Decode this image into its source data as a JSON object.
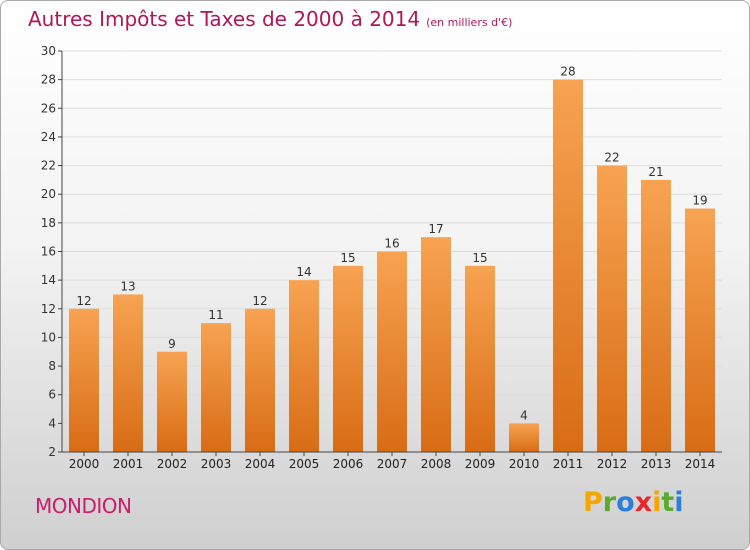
{
  "header": {
    "title": "Autres Impôts et Taxes de 2000 à 2014",
    "unit": "(en milliers d'€)"
  },
  "footer": {
    "commune": "MONDION"
  },
  "logo": {
    "letters": [
      "P",
      "r",
      "o",
      "x",
      "i",
      "t",
      "i"
    ],
    "colors": [
      "#f7a500",
      "#5aab2c",
      "#2b7fd8",
      "#e8262b",
      "#f7a500",
      "#5aab2c",
      "#2b7fd8"
    ]
  },
  "colors": {
    "bar_top": "#f7a352",
    "bar_bottom": "#d86c14",
    "axis": "#444444",
    "grid": "#dddddd",
    "title": "#b0175a"
  },
  "chart_data": {
    "type": "bar",
    "title": "Autres Impôts et Taxes de 2000 à 2014",
    "subtitle": "(en milliers d'€)",
    "xlabel": "",
    "ylabel": "",
    "ylim": [
      2,
      30
    ],
    "yticks": [
      2,
      4,
      6,
      8,
      10,
      12,
      14,
      16,
      18,
      20,
      22,
      24,
      26,
      28,
      30
    ],
    "grid": true,
    "categories": [
      "2000",
      "2001",
      "2002",
      "2003",
      "2004",
      "2005",
      "2006",
      "2007",
      "2008",
      "2009",
      "2010",
      "2011",
      "2012",
      "2013",
      "2014"
    ],
    "values": [
      12,
      13,
      9,
      11,
      12,
      14,
      15,
      16,
      17,
      15,
      4,
      28,
      22,
      21,
      19
    ]
  }
}
